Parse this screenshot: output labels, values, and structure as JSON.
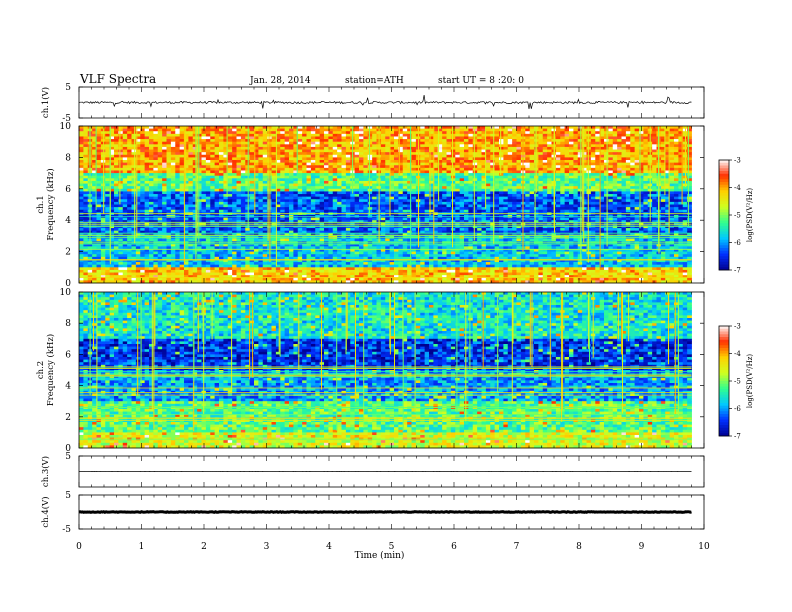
{
  "header": {
    "title": "VLF  Spectra",
    "date": "Jan. 28, 2014",
    "station": "station=ATH",
    "start": "start  UT  =   8  :20: 0"
  },
  "colors": {
    "axis": "#000000",
    "background": "#ffffff",
    "colormap": [
      "#000090",
      "#0030ff",
      "#00c8ff",
      "#30ff90",
      "#d0ff20",
      "#ffd000",
      "#ff3000",
      "#ffffff"
    ]
  },
  "chart_data": [
    {
      "type": "line",
      "name": "ch1-waveform",
      "ylabel": "ch.1(V)",
      "ylim": [
        -5,
        5
      ],
      "yticks": [
        "5",
        "-5"
      ],
      "xlim": [
        0,
        10
      ],
      "baseline_v": 0.0,
      "grid": false
    },
    {
      "type": "heatmap",
      "name": "ch1-spectrogram",
      "ylabel": "ch.1\nFrequency  (kHz)",
      "ylim": [
        0,
        10
      ],
      "yticks": [
        "0",
        "2",
        "4",
        "6",
        "8",
        "10"
      ],
      "xlim": [
        0,
        10
      ],
      "data_end_min": 9.8,
      "colorbar": {
        "label": "log(PSD(V²/Hz)",
        "range": [
          -7,
          -3
        ],
        "ticks": [
          "-3",
          "-4",
          "-5",
          "-6",
          "-7"
        ]
      },
      "regions_log_psd": [
        {
          "f": [
            0.0,
            1.0
          ],
          "level": -4.2
        },
        {
          "f": [
            1.0,
            3.0
          ],
          "level": -5.8
        },
        {
          "f": [
            3.0,
            5.8
          ],
          "level": -6.3
        },
        {
          "f": [
            5.8,
            7.0
          ],
          "level": -5.2
        },
        {
          "f": [
            7.0,
            10.0
          ],
          "level": -4.0
        }
      ]
    },
    {
      "type": "heatmap",
      "name": "ch2-spectrogram",
      "ylabel": "ch.2\nFrequency  (kHz)",
      "ylim": [
        0,
        10
      ],
      "yticks": [
        "0",
        "2",
        "4",
        "6",
        "8",
        "10"
      ],
      "xlim": [
        0,
        10
      ],
      "data_end_min": 9.8,
      "colorbar": {
        "label": "log(PSD(V²/Hz)",
        "range": [
          -7,
          -3
        ],
        "ticks": [
          "-3",
          "-4",
          "-5",
          "-6",
          "-7"
        ]
      },
      "regions_log_psd": [
        {
          "f": [
            0.0,
            1.0
          ],
          "level": -4.6
        },
        {
          "f": [
            1.0,
            3.0
          ],
          "level": -5.2
        },
        {
          "f": [
            3.0,
            5.0
          ],
          "level": -6.0
        },
        {
          "f": [
            5.0,
            7.0
          ],
          "level": -6.5
        },
        {
          "f": [
            7.0,
            10.0
          ],
          "level": -5.6
        }
      ]
    },
    {
      "type": "line",
      "name": "ch3-waveform",
      "ylabel": "ch.3(V)",
      "ylim": [
        -5,
        5
      ],
      "yticks": [
        "5"
      ],
      "xlim": [
        0,
        10
      ],
      "baseline_v": 0.0
    },
    {
      "type": "line",
      "name": "ch4-waveform",
      "ylabel": "ch.4(V)",
      "ylim": [
        -5,
        5
      ],
      "yticks": [
        "5",
        "-5"
      ],
      "xlim": [
        0,
        10
      ],
      "baseline_v": 0.0,
      "xlabel": "Time  (min)",
      "xticks": [
        "0",
        "1",
        "2",
        "3",
        "4",
        "5",
        "6",
        "7",
        "8",
        "9",
        "10"
      ]
    }
  ]
}
